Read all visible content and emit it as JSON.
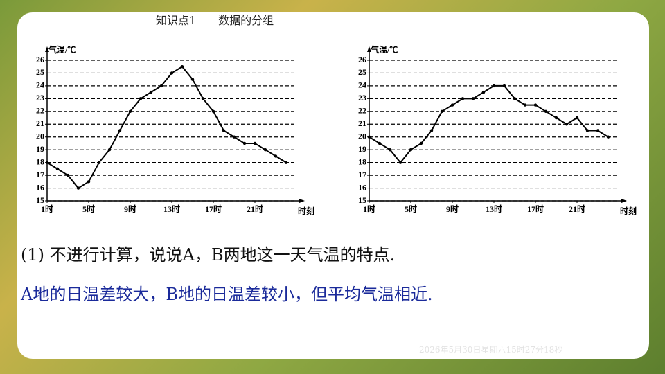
{
  "header": "知识点1　　数据的分组",
  "question": "(1) 不进行计算，说说A，B两地这一天气温的特点.",
  "answer": "A地的日温差较大，B地的日温差较小，但平均气温相近.",
  "timestamp": "2026年5月30日星期六15时27分18秒",
  "chart_data": [
    {
      "type": "line",
      "y_label": "气温/℃",
      "x_label": "时刻",
      "x": [
        1,
        2,
        3,
        4,
        5,
        6,
        7,
        8,
        9,
        10,
        11,
        12,
        13,
        14,
        15,
        16,
        17,
        18,
        19,
        20,
        21,
        22,
        23,
        24
      ],
      "series": [
        {
          "color": "#000000",
          "values": [
            18,
            17.5,
            17,
            16,
            16.5,
            18,
            19,
            20.5,
            22,
            23,
            23.5,
            24,
            25,
            25.5,
            24.5,
            23,
            22,
            20.5,
            20,
            19.5,
            19.5,
            19,
            18.5,
            18
          ]
        }
      ],
      "xlim": [
        1,
        25
      ],
      "ylim": [
        15,
        26
      ],
      "xticks": [
        {
          "value": 1,
          "label": "1时"
        },
        {
          "value": 5,
          "label": "5时"
        },
        {
          "value": 9,
          "label": "9时"
        },
        {
          "value": 13,
          "label": "13时"
        },
        {
          "value": 17,
          "label": "17时"
        },
        {
          "value": 21,
          "label": "21时"
        }
      ],
      "yticks": [
        15,
        16,
        17,
        18,
        19,
        20,
        21,
        22,
        23,
        24,
        25,
        26
      ],
      "grid": true
    },
    {
      "type": "line",
      "y_label": "气温/℃",
      "x_label": "时刻",
      "x": [
        1,
        2,
        3,
        4,
        5,
        6,
        7,
        8,
        9,
        10,
        11,
        12,
        13,
        14,
        15,
        16,
        17,
        18,
        19,
        20,
        21,
        22,
        23,
        24
      ],
      "series": [
        {
          "color": "#000000",
          "values": [
            20,
            19.5,
            19,
            18,
            19,
            19.5,
            20.5,
            22,
            22.5,
            23,
            23,
            23.5,
            24,
            24,
            23,
            22.5,
            22.5,
            22,
            21.5,
            21,
            21.5,
            20.5,
            20.5,
            20
          ]
        }
      ],
      "xlim": [
        1,
        25
      ],
      "ylim": [
        15,
        26
      ],
      "xticks": [
        {
          "value": 1,
          "label": "1时"
        },
        {
          "value": 5,
          "label": "5时"
        },
        {
          "value": 9,
          "label": "9时"
        },
        {
          "value": 13,
          "label": "13时"
        },
        {
          "value": 17,
          "label": "17时"
        },
        {
          "value": 21,
          "label": "21时"
        }
      ],
      "yticks": [
        15,
        16,
        17,
        18,
        19,
        20,
        21,
        22,
        23,
        24,
        25,
        26
      ],
      "grid": true
    }
  ]
}
